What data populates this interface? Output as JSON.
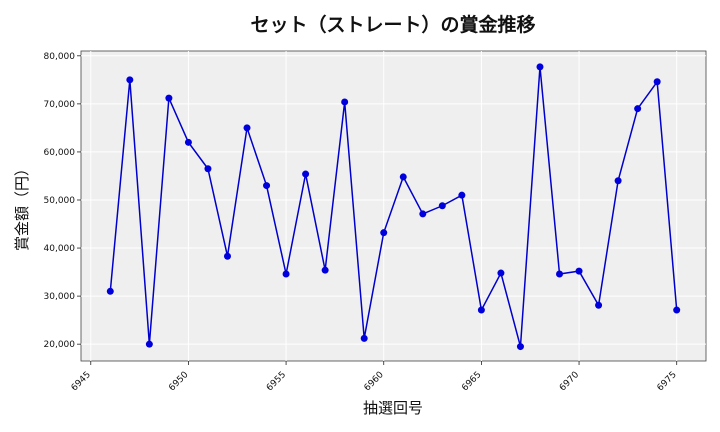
{
  "chart_data": {
    "type": "line",
    "title": "セット（ストレート）の賞金推移",
    "xlabel": "抽選回号",
    "ylabel": "賞金額（円）",
    "xlim": [
      6944.5,
      6976.5
    ],
    "ylim": [
      16500,
      81000
    ],
    "x_ticks": [
      6945,
      6950,
      6955,
      6960,
      6965,
      6970,
      6975
    ],
    "x_tick_labels": [
      "6945",
      "6950",
      "6955",
      "6960",
      "6965",
      "6970",
      "6975"
    ],
    "y_ticks": [
      20000,
      30000,
      40000,
      50000,
      60000,
      70000,
      80000
    ],
    "y_tick_labels": [
      "20,000",
      "30,000",
      "40,000",
      "50,000",
      "60,000",
      "70,000",
      "80,000"
    ],
    "grid": true,
    "series": [
      {
        "color": "#0000cc",
        "x": [
          6946,
          6947,
          6948,
          6949,
          6950,
          6951,
          6952,
          6953,
          6954,
          6955,
          6956,
          6957,
          6958,
          6959,
          6960,
          6961,
          6962,
          6963,
          6964,
          6965,
          6966,
          6967,
          6968,
          6969,
          6970,
          6971,
          6972,
          6973,
          6974,
          6975
        ],
        "values": [
          31000,
          75000,
          20000,
          71200,
          62000,
          56500,
          38300,
          65000,
          53000,
          34600,
          55400,
          35400,
          70400,
          21200,
          43200,
          54800,
          47100,
          48800,
          51000,
          27100,
          34800,
          19500,
          77700,
          34600,
          35200,
          28100,
          54000,
          69000,
          74600,
          27100
        ]
      }
    ]
  },
  "style": {
    "plot_bg": "#efefef",
    "grid_color": "#ffffff",
    "line_color": "#0000cc",
    "marker_color": "#0000dd"
  }
}
